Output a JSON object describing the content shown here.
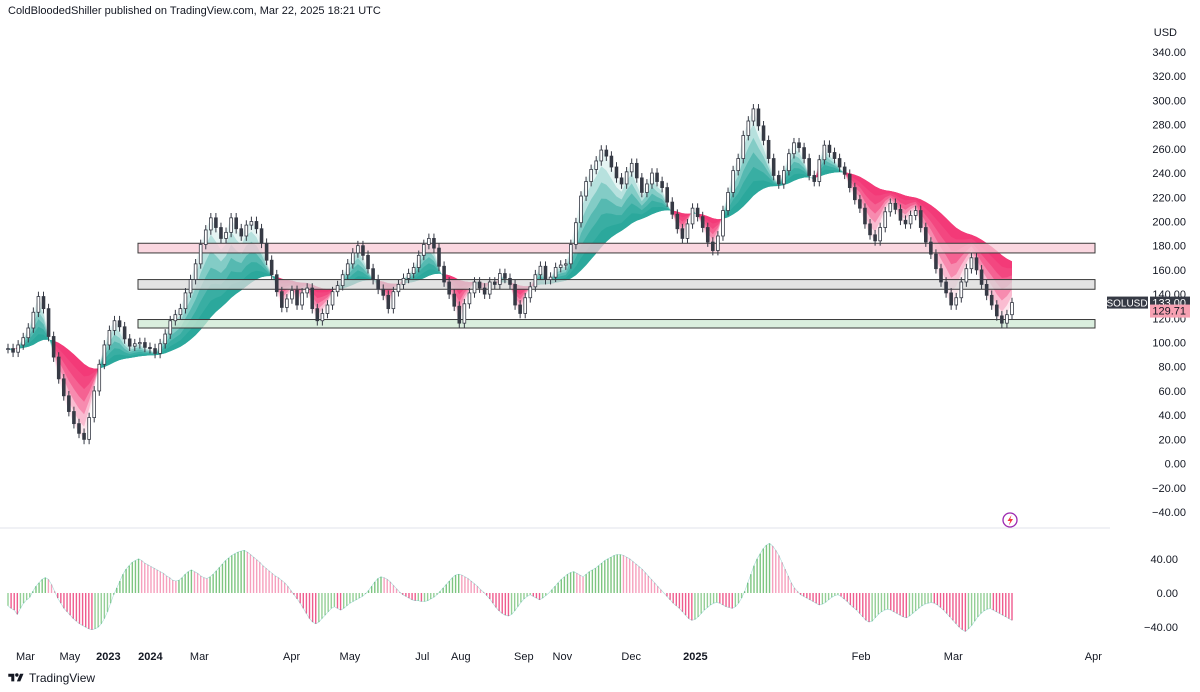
{
  "header": {
    "publisher": "ColdBloodedShiller published on TradingView.com, Mar 22, 2025 18:21 UTC"
  },
  "footer": {
    "brand": "TradingView",
    "icon": "tradingview-logo-icon"
  },
  "colors": {
    "bull": "#26a69a",
    "bear": "#f23674",
    "bull_light": "#b7f5c6",
    "bear_light": "#fdd3e2",
    "zone_pink": "#f8c9d6",
    "zone_grey": "#d9d9d9",
    "zone_green": "#cde8d3",
    "candle": "#363a45",
    "price_label_bg": "#363a45",
    "last_price_label_bg": "#f7a1b2"
  },
  "chart_data": [
    {
      "type": "candlestick",
      "symbol": "SOLUSD",
      "currency": "USD",
      "y_axis_title": "USD",
      "ylim": [
        -40,
        340
      ],
      "yticks": [
        "340.00",
        "320.00",
        "300.00",
        "280.00",
        "260.00",
        "240.00",
        "220.00",
        "200.00",
        "180.00",
        "160.00",
        "140.00",
        "120.00",
        "100.00",
        "80.00",
        "60.00",
        "40.00",
        "20.00",
        "0.00",
        "−20.00",
        "−40.00"
      ],
      "ytick_values": [
        340,
        320,
        300,
        280,
        260,
        240,
        220,
        200,
        180,
        160,
        140,
        120,
        100,
        80,
        60,
        40,
        20,
        0,
        -20,
        -40
      ],
      "x_ticks": [
        {
          "label": "Mar",
          "i": 1.5
        },
        {
          "label": "May",
          "i": 5.3
        },
        {
          "label": "2023",
          "i": 8.6
        },
        {
          "label": "2024",
          "i": 12.2
        },
        {
          "label": "Mar",
          "i": 16.4
        },
        {
          "label": "Apr",
          "i": 24.3
        },
        {
          "label": "May",
          "i": 29.3
        },
        {
          "label": "Jul",
          "i": 35.5
        },
        {
          "label": "Aug",
          "i": 38.8
        },
        {
          "label": "Sep",
          "i": 44.2
        },
        {
          "label": "Nov",
          "i": 47.5
        },
        {
          "label": "Dec",
          "i": 53.4
        },
        {
          "label": "2025",
          "i": 58.9
        },
        {
          "label": "Feb",
          "i": 73.1
        },
        {
          "label": "Mar",
          "i": 81.0
        },
        {
          "label": "Apr",
          "i": 93.0
        }
      ],
      "series_close": [
        95,
        92,
        98,
        104,
        112,
        125,
        138,
        128,
        105,
        88,
        70,
        56,
        43,
        33,
        25,
        20,
        38,
        60,
        82,
        98,
        110,
        118,
        113,
        103,
        97,
        99,
        100,
        96,
        95,
        91,
        99,
        107,
        118,
        123,
        128,
        141,
        152,
        165,
        181,
        193,
        203,
        195,
        186,
        191,
        203,
        194,
        188,
        197,
        200,
        194,
        182,
        168,
        156,
        142,
        129,
        136,
        143,
        131,
        141,
        145,
        128,
        118,
        124,
        131,
        142,
        147,
        156,
        165,
        174,
        180,
        172,
        161,
        152,
        144,
        139,
        128,
        142,
        148,
        153,
        157,
        162,
        172,
        181,
        186,
        178,
        163,
        150,
        140,
        130,
        116,
        132,
        141,
        150,
        145,
        140,
        150,
        148,
        157,
        153,
        148,
        131,
        124,
        137,
        146,
        156,
        163,
        152,
        154,
        162,
        164,
        165,
        181,
        199,
        221,
        233,
        243,
        250,
        259,
        254,
        245,
        236,
        231,
        241,
        248,
        236,
        224,
        231,
        240,
        233,
        228,
        216,
        206,
        194,
        186,
        198,
        211,
        204,
        195,
        183,
        176,
        188,
        209,
        224,
        242,
        252,
        271,
        283,
        293,
        279,
        267,
        252,
        238,
        231,
        242,
        256,
        265,
        261,
        252,
        238,
        233,
        251,
        263,
        257,
        252,
        245,
        239,
        228,
        218,
        211,
        198,
        189,
        184,
        195,
        208,
        215,
        210,
        201,
        198,
        205,
        209,
        195,
        183,
        173,
        161,
        150,
        141,
        131,
        137,
        150,
        161,
        170,
        160,
        148,
        139,
        131,
        122,
        116,
        123,
        133
      ],
      "oscillator": [
        -15,
        -18,
        -20,
        -25,
        -18,
        -12,
        -8,
        -5,
        2,
        8,
        12,
        16,
        18,
        16,
        10,
        2,
        -6,
        -12,
        -18,
        -22,
        -26,
        -30,
        -33,
        -36,
        -38,
        -40,
        -42,
        -43,
        -42,
        -40,
        -36,
        -30,
        -22,
        -12,
        -2,
        6,
        14,
        22,
        28,
        32,
        36,
        38,
        40,
        38,
        35,
        33,
        31,
        29,
        27,
        25,
        23,
        20,
        18,
        15,
        14,
        15,
        18,
        22,
        25,
        27,
        25,
        23,
        20,
        18,
        17,
        19,
        22,
        26,
        30,
        34,
        38,
        41,
        44,
        46,
        48,
        49,
        50,
        48,
        45,
        42,
        39,
        36,
        32,
        29,
        26,
        23,
        20,
        18,
        15,
        12,
        8,
        3,
        -2,
        -7,
        -12,
        -18,
        -24,
        -30,
        -34,
        -36,
        -34,
        -30,
        -26,
        -22,
        -18,
        -16,
        -18,
        -20,
        -18,
        -15,
        -12,
        -10,
        -8,
        -6,
        -4,
        -1,
        3,
        8,
        13,
        17,
        19,
        18,
        16,
        13,
        9,
        5,
        1,
        -2,
        -4,
        -6,
        -8,
        -9,
        -9,
        -10,
        -10,
        -9,
        -7,
        -5,
        -2,
        2,
        6,
        10,
        14,
        18,
        21,
        22,
        21,
        19,
        17,
        14,
        11,
        8,
        4,
        1,
        -3,
        -7,
        -12,
        -17,
        -21,
        -24,
        -26,
        -27,
        -25,
        -21,
        -16,
        -11,
        -7,
        -4,
        -2,
        -4,
        -6,
        -8,
        -6,
        -3,
        0,
        4,
        8,
        12,
        16,
        19,
        22,
        24,
        25,
        23,
        21,
        19,
        22,
        25,
        27,
        29,
        32,
        35,
        38,
        40,
        42,
        44,
        45,
        45,
        44,
        42,
        40,
        37,
        34,
        31,
        28,
        24,
        20,
        16,
        12,
        8,
        4,
        0,
        -4,
        -8,
        -12,
        -15,
        -18,
        -22,
        -26,
        -30,
        -32,
        -31,
        -28,
        -24,
        -20,
        -17,
        -14,
        -12,
        -11,
        -12,
        -14,
        -16,
        -17,
        -18,
        -16,
        -12,
        -6,
        2,
        12,
        22,
        32,
        40,
        46,
        52,
        56,
        58,
        55,
        50,
        44,
        36,
        28,
        20,
        12,
        6,
        2,
        -2,
        -4,
        -6,
        -8,
        -10,
        -12,
        -14,
        -13,
        -11,
        -8,
        -5,
        -3,
        -2,
        -4,
        -7,
        -10,
        -14,
        -17,
        -20,
        -24,
        -28,
        -32,
        -34,
        -33,
        -29,
        -25,
        -22,
        -20,
        -19,
        -20,
        -22,
        -24,
        -26,
        -28,
        -29,
        -27,
        -24,
        -21,
        -18,
        -15,
        -13,
        -12,
        -11,
        -12,
        -14,
        -17,
        -20,
        -24,
        -28,
        -32,
        -36,
        -40,
        -43,
        -45,
        -42,
        -38,
        -33,
        -28,
        -24,
        -21,
        -19,
        -18,
        -20,
        -22,
        -24,
        -26,
        -28,
        -30,
        -32
      ],
      "oscillator_yticks": [
        "40.00",
        "0.00",
        "−40.00"
      ],
      "oscillator_ytick_values": [
        40,
        0,
        -40
      ],
      "oscillator_ylim": [
        -55,
        62
      ],
      "zones": [
        {
          "name": "resistance-zone",
          "low": 174,
          "high": 182,
          "color": "pink"
        },
        {
          "name": "mid-zone",
          "low": 144,
          "high": 152,
          "color": "grey"
        },
        {
          "name": "support-zone",
          "low": 112,
          "high": 119,
          "color": "green"
        }
      ],
      "price_labels": [
        {
          "symbol": "SOLUSD",
          "value": "133.00",
          "y": 133
        },
        {
          "value": "129.71",
          "y": 129.71
        }
      ]
    }
  ]
}
